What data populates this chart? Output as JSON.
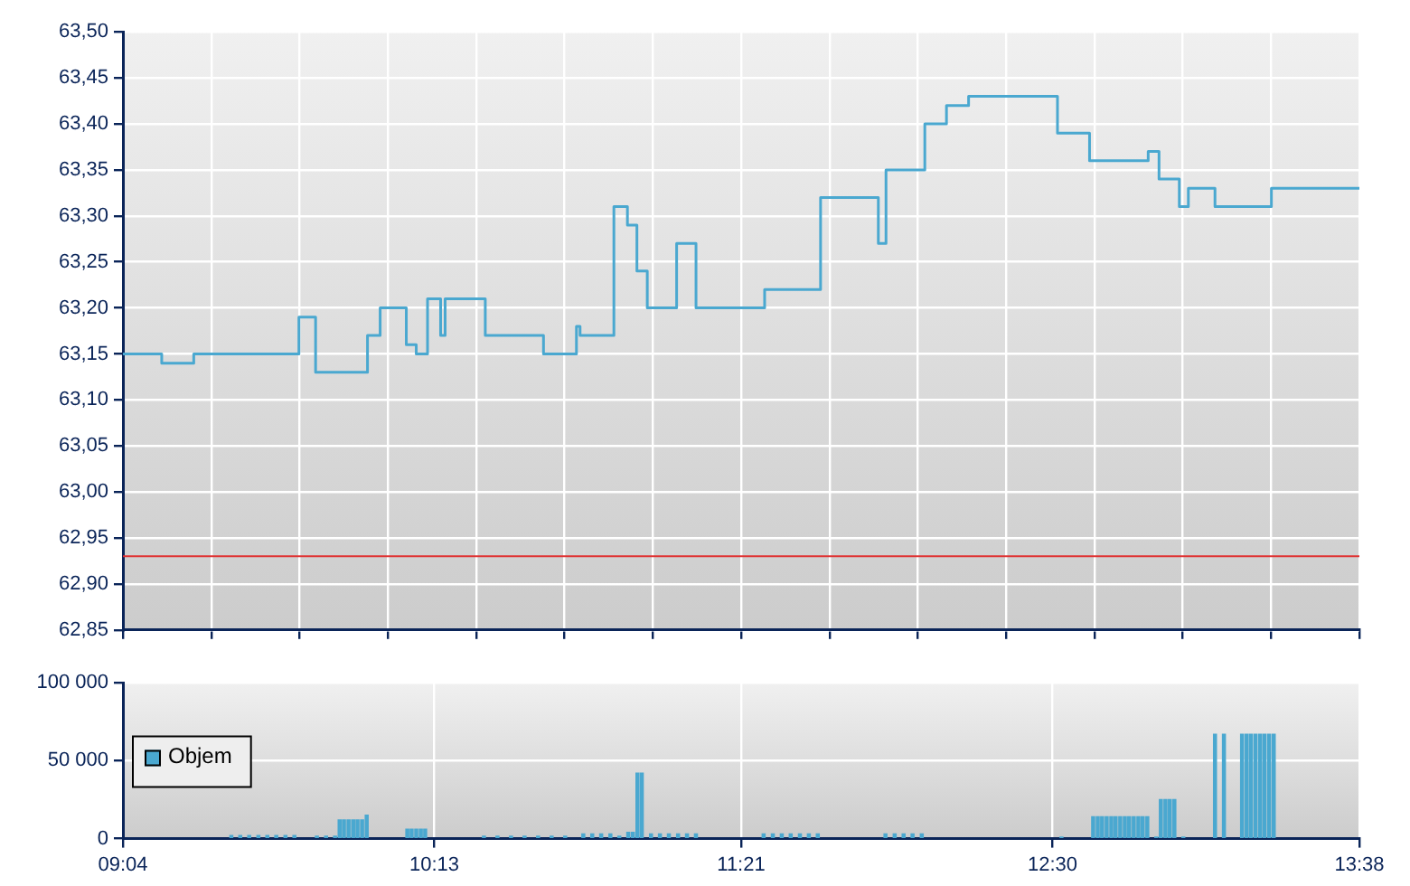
{
  "chart_data": [
    {
      "type": "step",
      "tick_labels": "y",
      "grid": true,
      "x": [
        9.0667,
        9.21,
        9.3283,
        9.7167,
        9.7783,
        9.97,
        10.0167,
        10.1133,
        10.15,
        10.1917,
        10.24,
        10.2567,
        10.405,
        10.62,
        10.7417,
        10.755,
        10.88,
        10.93,
        10.965,
        11.0033,
        11.1117,
        11.1833,
        11.4367,
        11.6433,
        11.8567,
        11.885,
        12.0283,
        12.1083,
        12.19,
        12.5183,
        12.6367,
        12.8533,
        12.8933,
        12.9683,
        13.0017,
        13.1,
        13.3083,
        13.6333
      ],
      "series": [
        {
          "color": "#4aa8d0",
          "values": [
            63.15,
            63.14,
            63.15,
            63.19,
            63.13,
            63.17,
            63.2,
            63.16,
            63.15,
            63.21,
            63.17,
            63.21,
            63.17,
            63.15,
            63.18,
            63.17,
            63.31,
            63.29,
            63.24,
            63.2,
            63.27,
            63.2,
            63.22,
            63.32,
            63.27,
            63.35,
            63.4,
            63.42,
            63.43,
            63.39,
            63.36,
            63.37,
            63.34,
            63.31,
            63.33,
            63.31,
            63.33,
            63.33
          ]
        }
      ],
      "xlim": [
        9.0667,
        13.6333
      ],
      "xticks": [
        {
          "value": 9.0667,
          "label": null
        },
        {
          "value": 9.3929,
          "label": null
        },
        {
          "value": 9.719,
          "label": null
        },
        {
          "value": 10.0452,
          "label": null
        },
        {
          "value": 10.3714,
          "label": null
        },
        {
          "value": 10.6976,
          "label": null
        },
        {
          "value": 11.0238,
          "label": null
        },
        {
          "value": 11.35,
          "label": null
        },
        {
          "value": 11.6762,
          "label": null
        },
        {
          "value": 12.0024,
          "label": null
        },
        {
          "value": 12.3286,
          "label": null
        },
        {
          "value": 12.6548,
          "label": null
        },
        {
          "value": 12.981,
          "label": null
        },
        {
          "value": 13.3071,
          "label": null
        },
        {
          "value": 13.6333,
          "label": null
        }
      ],
      "ylim": [
        62.85,
        63.5
      ],
      "yticks": [
        {
          "value": 62.85,
          "label": "62,85"
        },
        {
          "value": 62.9,
          "label": "62,90"
        },
        {
          "value": 62.95,
          "label": "62,95"
        },
        {
          "value": 63,
          "label": "63,00"
        },
        {
          "value": 63.05,
          "label": "63,05"
        },
        {
          "value": 63.1,
          "label": "63,10"
        },
        {
          "value": 63.15,
          "label": "63,15"
        },
        {
          "value": 63.2,
          "label": "63,20"
        },
        {
          "value": 63.25,
          "label": "63,25"
        },
        {
          "value": 63.3,
          "label": "63,30"
        },
        {
          "value": 63.35,
          "label": "63,35"
        },
        {
          "value": 63.4,
          "label": "63,40"
        },
        {
          "value": 63.45,
          "label": "63,45"
        },
        {
          "value": 63.5,
          "label": "63,50"
        }
      ],
      "ref_lines": [
        {
          "axis": "y",
          "value": 62.93,
          "color": "#e03030"
        }
      ]
    },
    {
      "type": "bar",
      "grid": true,
      "legend": "left",
      "x": [
        9.467,
        9.5,
        9.533,
        9.567,
        9.6,
        9.633,
        9.667,
        9.7,
        9.783,
        9.817,
        9.85,
        9.867,
        9.883,
        9.9,
        9.917,
        9.933,
        9.95,
        9.967,
        10.117,
        10.133,
        10.15,
        10.167,
        10.183,
        10.4,
        10.45,
        10.5,
        10.55,
        10.6,
        10.65,
        10.7,
        10.767,
        10.8,
        10.833,
        10.867,
        10.9,
        10.933,
        10.95,
        10.967,
        10.983,
        11.017,
        11.05,
        11.083,
        11.117,
        11.15,
        11.183,
        11.433,
        11.467,
        11.5,
        11.533,
        11.567,
        11.6,
        11.633,
        11.883,
        11.917,
        11.95,
        11.983,
        12.017,
        12.533,
        12.65,
        12.667,
        12.683,
        12.7,
        12.717,
        12.733,
        12.75,
        12.767,
        12.783,
        12.8,
        12.817,
        12.833,
        12.85,
        12.883,
        12.9,
        12.917,
        12.933,
        12.95,
        12.983,
        13.1,
        13.133,
        13.2,
        13.217,
        13.233,
        13.25,
        13.267,
        13.283,
        13.3,
        13.317
      ],
      "series": [
        {
          "name": "Objem",
          "color": "#4aa8d0",
          "values": [
            2000,
            2000,
            2000,
            2000,
            2000,
            2000,
            2000,
            2000,
            1500,
            1500,
            1500,
            12000,
            12000,
            12000,
            12000,
            12000,
            12000,
            15000,
            6000,
            6000,
            6000,
            6000,
            6000,
            1500,
            1500,
            1500,
            1500,
            1500,
            1500,
            1500,
            3000,
            3000,
            3000,
            3000,
            1500,
            4000,
            4000,
            42000,
            42000,
            3000,
            3000,
            3000,
            3000,
            3000,
            3000,
            3000,
            3000,
            3000,
            3000,
            3000,
            3000,
            3000,
            3000,
            3000,
            3000,
            3000,
            3000,
            1000,
            14000,
            14000,
            14000,
            14000,
            14000,
            14000,
            14000,
            14000,
            14000,
            14000,
            14000,
            14000,
            14000,
            1000,
            25000,
            25000,
            25000,
            25000,
            1000,
            67000,
            67000,
            67000,
            67000,
            67000,
            67000,
            67000,
            67000,
            67000,
            67000
          ]
        }
      ],
      "xlim": [
        9.0667,
        13.6333
      ],
      "xticks": [
        {
          "value": 9.0667,
          "label": "09:04"
        },
        {
          "value": 10.2167,
          "label": "10:13"
        },
        {
          "value": 11.35,
          "label": "11:21"
        },
        {
          "value": 12.5,
          "label": "12:30"
        },
        {
          "value": 13.6333,
          "label": "13:38"
        }
      ],
      "ylim": [
        0,
        100000
      ],
      "yticks": [
        {
          "value": 0,
          "label": "0"
        },
        {
          "value": 50000,
          "label": "50 000"
        },
        {
          "value": 100000,
          "label": "100 000"
        }
      ]
    }
  ]
}
